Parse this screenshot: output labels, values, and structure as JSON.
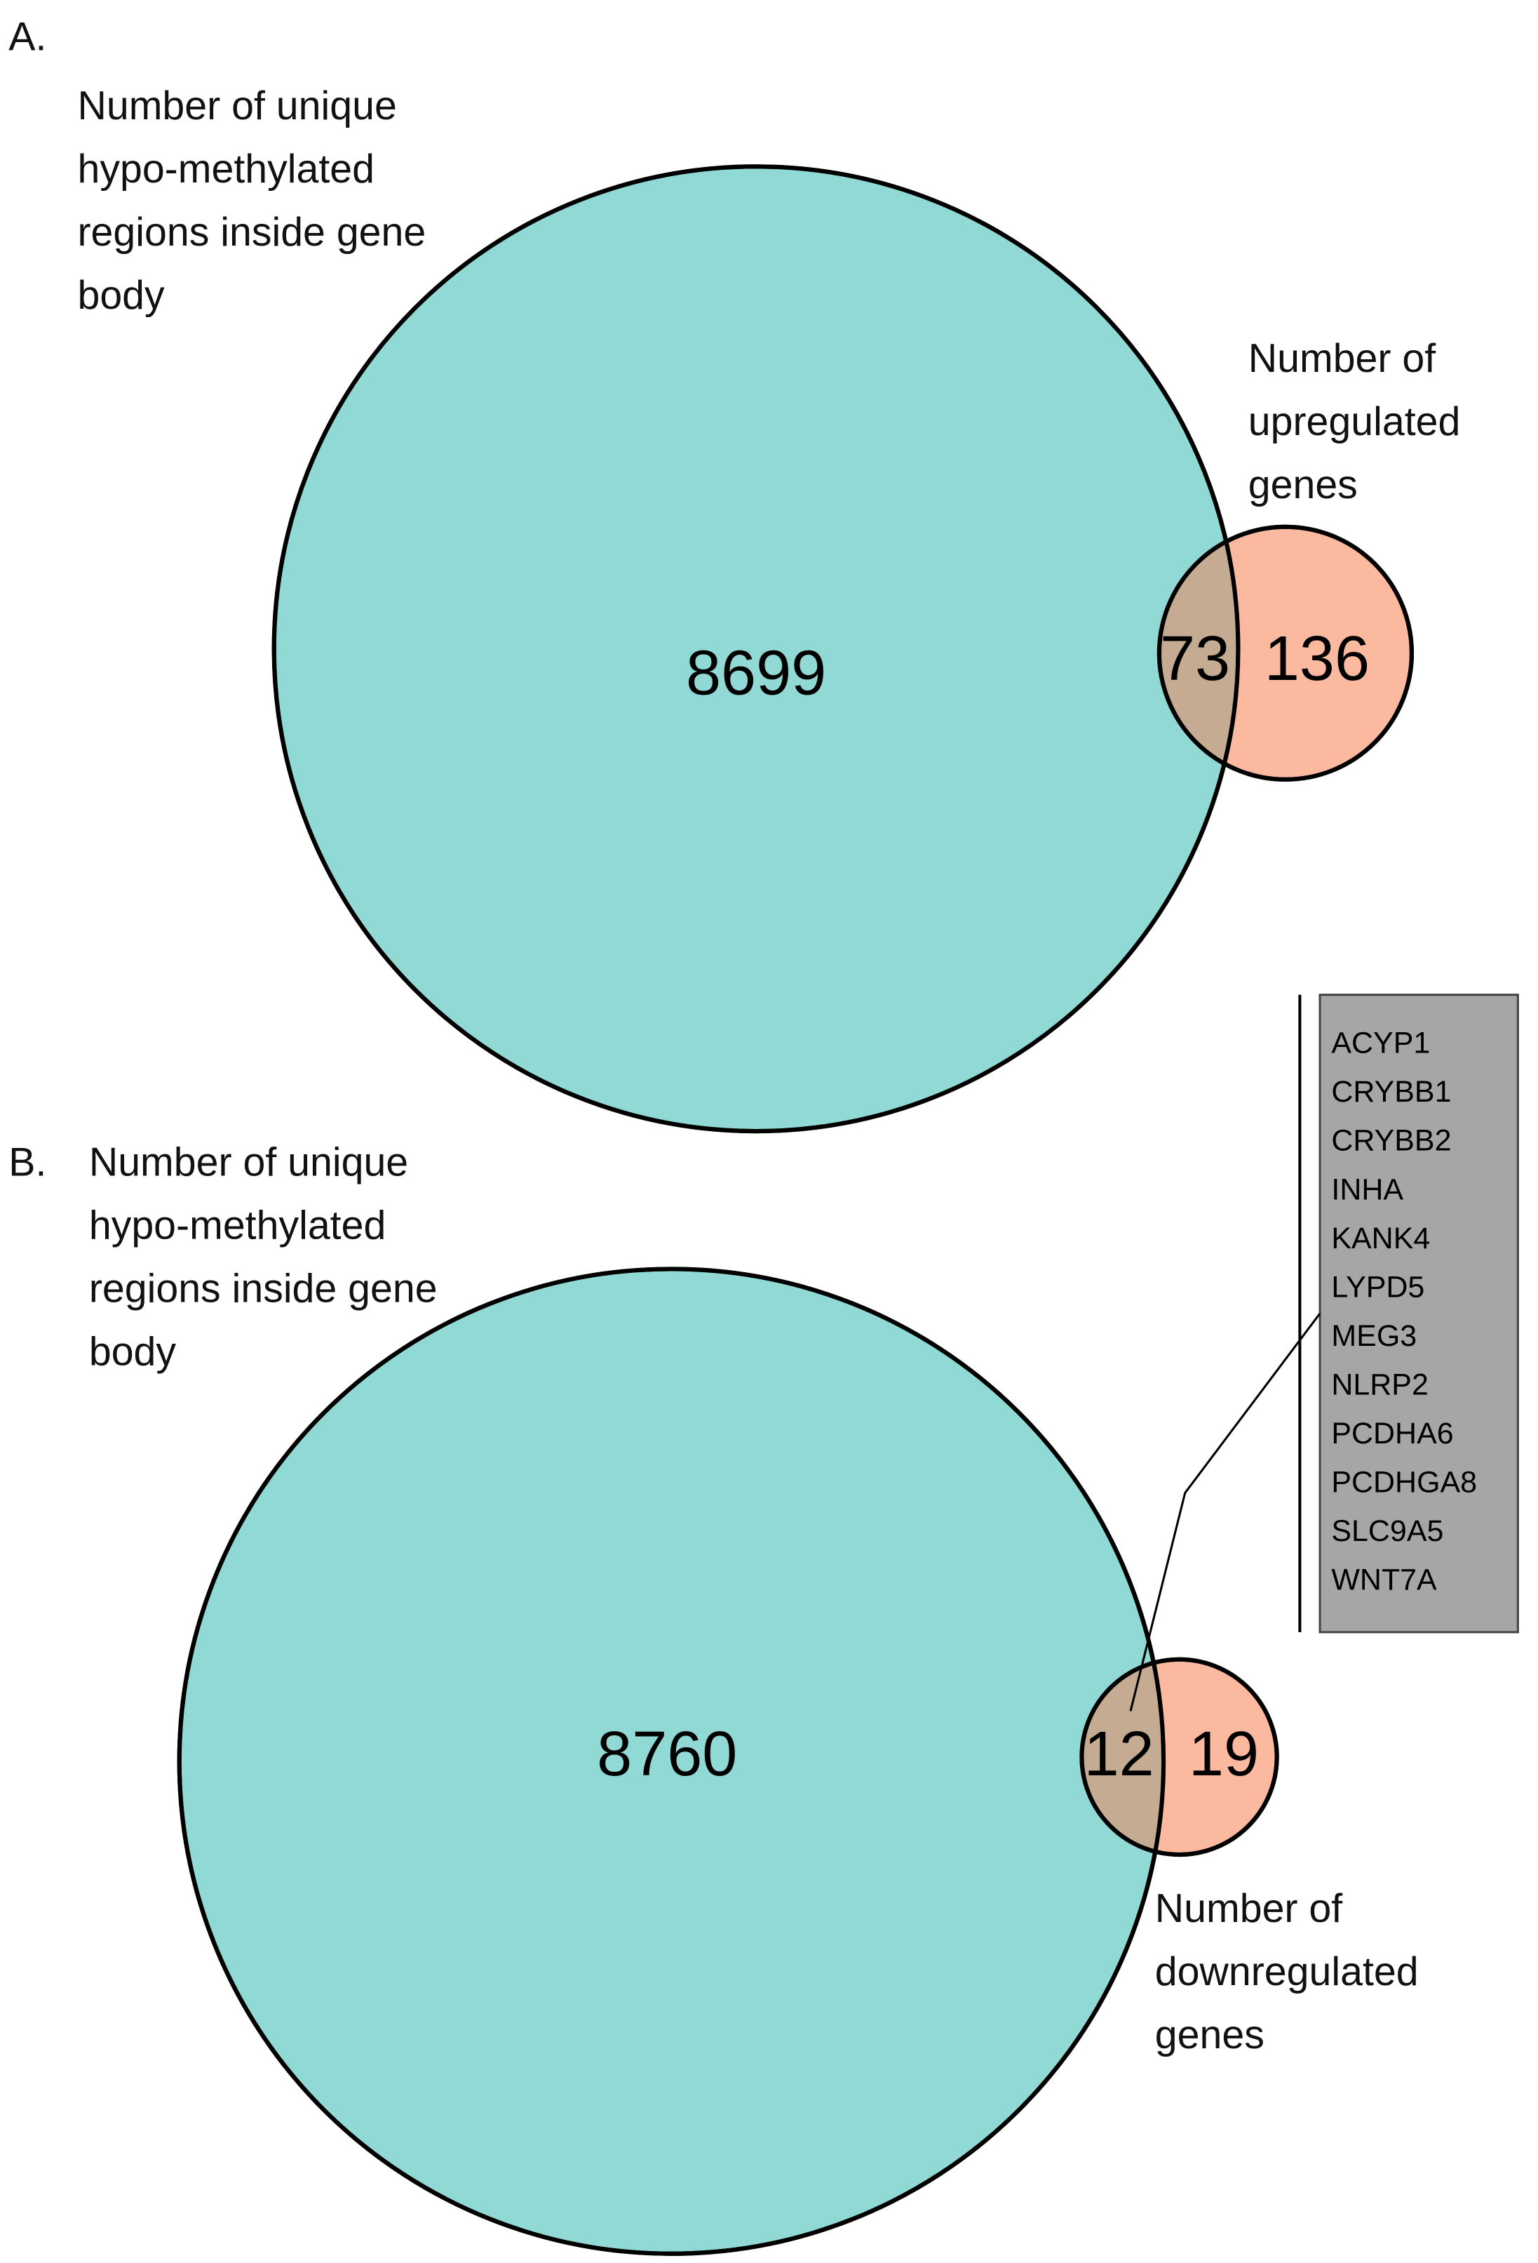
{
  "chart_data": [
    {
      "type": "venn",
      "panel_label": "A.",
      "sets": [
        {
          "name": "Number of unique hypo-methylated regions inside gene body",
          "color": "#90d9d4"
        },
        {
          "name": "Number of upregulated genes",
          "color": "#fbb9a0"
        }
      ],
      "overlap_color": "#c4ab91",
      "values": [
        8699,
        73,
        136
      ]
    },
    {
      "type": "venn",
      "panel_label": "B.",
      "sets": [
        {
          "name": "Number of unique hypo-methylated regions inside gene body",
          "color": "#90d9d4"
        },
        {
          "name": "Number of downregulated genes",
          "color": "#fbb9a0"
        }
      ],
      "overlap_color": "#c4ab91",
      "values": [
        8760,
        12,
        19
      ],
      "overlap_genes": [
        "ACYP1",
        "CRYBB1",
        "CRYBB2",
        "INHA",
        "KANK4",
        "LYPD5",
        "MEG3",
        "NLRP2",
        "PCDHA6",
        "PCDHGA8",
        "SLC9A5",
        "WNT7A"
      ]
    }
  ]
}
